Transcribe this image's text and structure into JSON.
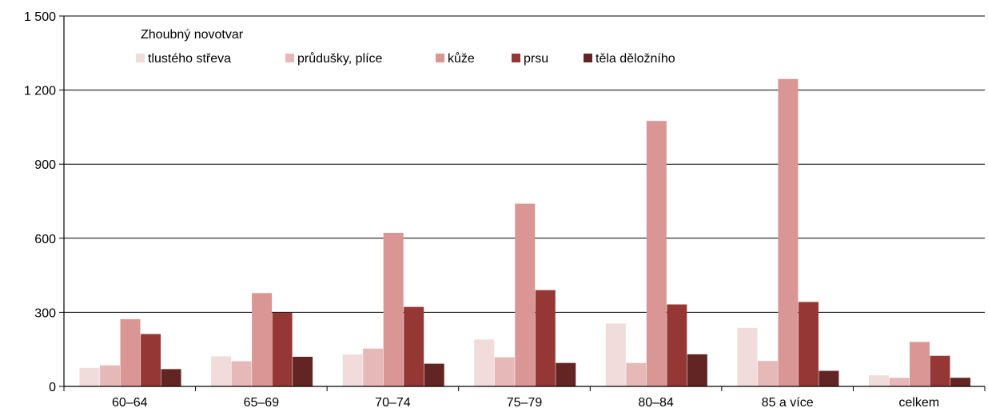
{
  "chart_data": {
    "type": "bar",
    "title": "",
    "xlabel": "",
    "ylabel": "",
    "ylim": [
      0,
      1500
    ],
    "y_ticks": [
      0,
      300,
      600,
      900,
      1200,
      1500
    ],
    "y_tick_labels": [
      "0",
      "300",
      "600",
      "900",
      "1 200",
      "1 500"
    ],
    "grid": true,
    "legend_title": "Zhoubný novotvar",
    "legend_position": "top-left",
    "categories": [
      "60–64",
      "65–69",
      "70–74",
      "75–79",
      "80–84",
      "85 a více",
      "celkem"
    ],
    "series": [
      {
        "name": "tlustého střeva",
        "color": "#f2dcdb",
        "values": [
          75,
          122,
          130,
          190,
          255,
          237,
          45
        ]
      },
      {
        "name": "průdušky, plíce",
        "color": "#e6b9b8",
        "values": [
          85,
          102,
          153,
          118,
          95,
          103,
          35
        ]
      },
      {
        "name": "kůže",
        "color": "#d99694",
        "values": [
          272,
          378,
          622,
          740,
          1075,
          1245,
          180
        ]
      },
      {
        "name": "prsu",
        "color": "#953735",
        "values": [
          212,
          298,
          322,
          390,
          332,
          342,
          124
        ]
      },
      {
        "name": "těla děložního",
        "color": "#632523",
        "values": [
          70,
          120,
          92,
          95,
          130,
          63,
          35
        ]
      }
    ]
  }
}
